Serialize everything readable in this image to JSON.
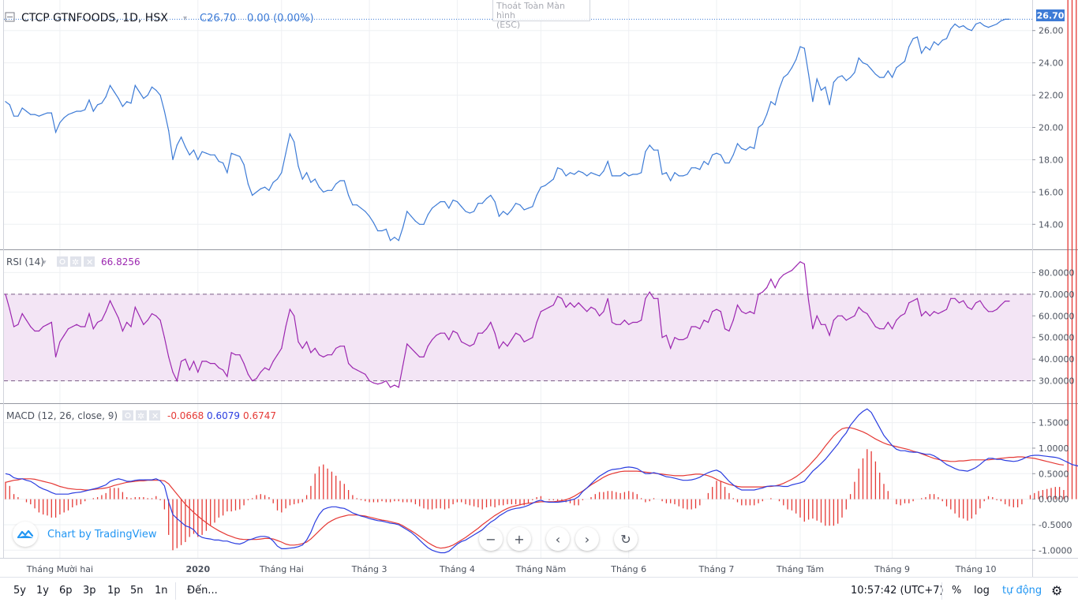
{
  "header": {
    "symbol_line": "CTCP GTNFOODS, 1D, HSX",
    "close": "C26.70",
    "change": "0.00 (0.00%)",
    "last_price_label": "26.70"
  },
  "fullscreen_exit": {
    "label": "Thoát Toàn Màn hình",
    "hint": "(ESC)"
  },
  "rsi": {
    "title": "RSI (14)",
    "value": "66.8256"
  },
  "macd": {
    "title": "MACD (12, 26, close, 9)",
    "hist": "-0.0668",
    "macd_value": "0.6079",
    "signal_value": "0.6747"
  },
  "branding": {
    "label": "Chart by TradingView"
  },
  "colors": {
    "price": "#3d7bd6",
    "rsi": "#9c27b0",
    "rsi_band": "#f3e5f5",
    "macd": "#2a3de0",
    "signal": "#e53935",
    "hist": "#e53935",
    "accent": "#2196f3"
  },
  "bottom_bar": {
    "ranges": [
      "5y",
      "1y",
      "6p",
      "3p",
      "1p",
      "5n",
      "1n"
    ],
    "goto": "Đến...",
    "time": "10:57:42 (UTC+7)",
    "percent": "%",
    "log": "log",
    "auto": "tự động"
  },
  "chart_data": [
    {
      "type": "line",
      "name": "price",
      "title": "CTCP GTNFOODS, 1D, HSX",
      "ylim": [
        12.5,
        27.5
      ],
      "yticks": [
        "14.00",
        "16.00",
        "18.00",
        "20.00",
        "22.00",
        "24.00",
        "26.00"
      ],
      "x_labels": [
        "Tháng Mười hai",
        "2020",
        "Tháng Hai",
        "Tháng 3",
        "Tháng 4",
        "Tháng Năm",
        "Tháng 6",
        "Tháng 7",
        "Tháng Tám",
        "Tháng 9",
        "Tháng 10"
      ],
      "x_label_index": [
        13,
        46,
        66,
        87,
        108,
        128,
        149,
        170,
        190,
        212,
        232
      ],
      "values": [
        21.6,
        21.4,
        20.7,
        20.7,
        21.2,
        21.0,
        20.8,
        20.8,
        20.7,
        20.8,
        20.9,
        20.9,
        19.7,
        20.3,
        20.6,
        20.8,
        20.9,
        21.0,
        21.0,
        21.1,
        21.7,
        21.0,
        21.4,
        21.5,
        21.9,
        22.6,
        22.2,
        21.8,
        21.3,
        21.6,
        21.5,
        22.6,
        22.2,
        21.8,
        22.0,
        22.5,
        22.3,
        22.0,
        21.0,
        19.8,
        18.0,
        18.9,
        19.4,
        18.8,
        18.3,
        18.6,
        18.0,
        18.5,
        18.4,
        18.3,
        18.3,
        17.9,
        17.8,
        17.2,
        18.4,
        18.3,
        18.2,
        17.7,
        16.5,
        15.8,
        16.0,
        16.2,
        16.3,
        16.1,
        16.6,
        16.8,
        17.2,
        18.4,
        19.6,
        19.1,
        17.6,
        16.8,
        17.2,
        16.6,
        16.8,
        16.3,
        16.0,
        16.1,
        16.1,
        16.5,
        16.7,
        16.7,
        15.8,
        15.2,
        15.2,
        15.0,
        14.8,
        14.5,
        14.1,
        13.6,
        13.6,
        13.7,
        13.0,
        13.2,
        13.0,
        13.8,
        14.8,
        14.5,
        14.2,
        14.0,
        14.0,
        14.6,
        15.0,
        15.2,
        15.4,
        15.4,
        15.0,
        15.5,
        15.4,
        15.1,
        14.8,
        14.7,
        14.8,
        15.3,
        15.3,
        15.6,
        15.8,
        15.4,
        14.5,
        14.8,
        14.6,
        14.9,
        15.3,
        15.2,
        14.9,
        15.0,
        15.1,
        15.8,
        16.3,
        16.4,
        16.6,
        16.8,
        17.5,
        17.4,
        17.0,
        17.2,
        17.1,
        17.3,
        17.2,
        17.0,
        17.2,
        17.1,
        17.0,
        17.3,
        17.9,
        17.0,
        17.0,
        17.0,
        17.2,
        17.0,
        17.1,
        17.1,
        17.2,
        18.5,
        18.9,
        18.6,
        18.6,
        17.1,
        17.2,
        16.7,
        17.2,
        17.0,
        17.0,
        17.1,
        17.5,
        17.5,
        17.4,
        17.9,
        17.7,
        18.3,
        18.4,
        18.3,
        17.8,
        17.8,
        18.3,
        19.0,
        18.7,
        18.6,
        18.8,
        18.7,
        20.0,
        20.2,
        20.8,
        21.6,
        21.4,
        22.4,
        23.1,
        23.3,
        23.7,
        24.2,
        25.0,
        24.9,
        23.3,
        21.6,
        23.0,
        22.3,
        22.5,
        21.4,
        22.8,
        23.1,
        23.2,
        22.9,
        23.1,
        23.4,
        24.3,
        24.0,
        23.9,
        23.6,
        23.3,
        23.1,
        23.1,
        23.5,
        23.1,
        23.7,
        23.9,
        24.1,
        25.0,
        25.5,
        25.6,
        24.6,
        25.0,
        24.8,
        25.3,
        25.1,
        25.4,
        25.5,
        26.1,
        26.4,
        26.2,
        26.3,
        26.1,
        26.0,
        26.4,
        26.5,
        26.3,
        26.2,
        26.3,
        26.4,
        26.6,
        26.7,
        26.7
      ]
    },
    {
      "type": "line",
      "name": "rsi",
      "title": "RSI (14)",
      "ylim": [
        20,
        90
      ],
      "yticks": [
        "30.0000",
        "40.0000",
        "50.0000",
        "60.0000",
        "70.0000",
        "80.0000"
      ],
      "bands": [
        30,
        70
      ],
      "values": [
        70.0,
        63.0,
        55.0,
        56.0,
        61.0,
        58.0,
        55.0,
        53.0,
        53.0,
        55.0,
        56.0,
        57.0,
        41.0,
        48.0,
        51.0,
        54.0,
        55.0,
        56.0,
        55.0,
        55.0,
        61.0,
        54.0,
        57.0,
        58.0,
        62.0,
        67.0,
        63.0,
        59.0,
        53.0,
        57.0,
        55.0,
        64.0,
        60.0,
        56.0,
        58.0,
        61.0,
        60.0,
        58.0,
        50.0,
        41.0,
        34.0,
        30.0,
        39.0,
        40.0,
        35.0,
        39.0,
        34.0,
        39.0,
        39.0,
        38.0,
        38.0,
        36.0,
        35.0,
        32.0,
        43.0,
        42.0,
        42.0,
        38.0,
        33.0,
        30.0,
        31.0,
        34.0,
        36.0,
        35.0,
        39.0,
        42.0,
        45.0,
        55.0,
        63.0,
        60.0,
        48.0,
        45.0,
        48.0,
        43.0,
        45.0,
        42.0,
        41.0,
        42.0,
        42.0,
        45.0,
        46.0,
        46.0,
        38.0,
        36.0,
        35.0,
        34.0,
        33.0,
        30.0,
        29.0,
        28.5,
        29.0,
        30.0,
        27.0,
        28.0,
        27.0,
        37.0,
        47.0,
        45.0,
        43.0,
        41.0,
        41.0,
        46.0,
        49.0,
        51.0,
        52.0,
        52.0,
        49.0,
        53.0,
        52.0,
        48.0,
        47.0,
        46.0,
        47.0,
        52.0,
        52.0,
        54.0,
        57.0,
        52.0,
        45.0,
        48.0,
        46.0,
        49.0,
        52.0,
        51.0,
        48.0,
        49.0,
        50.0,
        57.0,
        62.0,
        63.0,
        64.0,
        65.0,
        69.0,
        68.0,
        64.0,
        66.0,
        64.0,
        66.0,
        64.0,
        62.0,
        64.0,
        63.0,
        60.0,
        62.0,
        68.0,
        57.0,
        56.0,
        56.0,
        58.0,
        56.0,
        57.0,
        57.0,
        58.0,
        68.0,
        71.0,
        68.0,
        68.0,
        50.0,
        51.0,
        45.0,
        50.0,
        49.0,
        49.0,
        50.0,
        55.0,
        55.0,
        54.0,
        58.0,
        57.0,
        62.0,
        63.0,
        62.0,
        54.0,
        53.0,
        58.0,
        65.0,
        62.0,
        61.0,
        62.0,
        61.0,
        70.0,
        71.0,
        73.0,
        77.0,
        73.0,
        77.0,
        79.0,
        80.0,
        81.0,
        83.0,
        85.0,
        84.0,
        67.0,
        54.0,
        60.0,
        56.0,
        56.0,
        51.0,
        58.0,
        60.0,
        60.0,
        58.0,
        59.0,
        60.0,
        64.0,
        62.0,
        61.0,
        58.0,
        55.0,
        54.0,
        54.0,
        57.0,
        54.0,
        58.0,
        60.0,
        61.0,
        66.0,
        67.0,
        68.0,
        60.0,
        62.0,
        60.0,
        62.0,
        61.0,
        62.0,
        63.0,
        68.0,
        68.0,
        66.0,
        67.0,
        64.0,
        63.0,
        66.0,
        67.0,
        64.0,
        62.0,
        62.0,
        63.0,
        65.0,
        66.8,
        66.8
      ]
    },
    {
      "type": "line",
      "name": "macd",
      "title": "MACD (12, 26, close, 9)",
      "ylim": [
        -1.15,
        1.85
      ],
      "yticks": [
        "-1.0000",
        "-0.5000",
        "0.0000",
        "0.5000",
        "1.0000",
        "1.5000"
      ],
      "series": [
        {
          "name": "MACD",
          "values": [
            0.5,
            0.48,
            0.42,
            0.4,
            0.4,
            0.37,
            0.35,
            0.3,
            0.24,
            0.2,
            0.17,
            0.13,
            0.1,
            0.1,
            0.1,
            0.1,
            0.12,
            0.13,
            0.14,
            0.16,
            0.18,
            0.2,
            0.22,
            0.25,
            0.28,
            0.35,
            0.38,
            0.4,
            0.38,
            0.35,
            0.35,
            0.37,
            0.38,
            0.38,
            0.38,
            0.38,
            0.4,
            0.36,
            0.26,
            -0.05,
            -0.3,
            -0.38,
            -0.45,
            -0.52,
            -0.55,
            -0.6,
            -0.7,
            -0.75,
            -0.77,
            -0.78,
            -0.8,
            -0.8,
            -0.82,
            -0.82,
            -0.85,
            -0.87,
            -0.88,
            -0.85,
            -0.8,
            -0.78,
            -0.75,
            -0.73,
            -0.73,
            -0.75,
            -0.82,
            -0.92,
            -0.97,
            -0.97,
            -0.96,
            -0.95,
            -0.93,
            -0.9,
            -0.8,
            -0.65,
            -0.45,
            -0.3,
            -0.2,
            -0.17,
            -0.15,
            -0.15,
            -0.17,
            -0.18,
            -0.22,
            -0.27,
            -0.3,
            -0.33,
            -0.35,
            -0.38,
            -0.4,
            -0.42,
            -0.43,
            -0.45,
            -0.47,
            -0.48,
            -0.5,
            -0.55,
            -0.6,
            -0.65,
            -0.72,
            -0.8,
            -0.88,
            -0.95,
            -1.0,
            -1.03,
            -1.05,
            -1.05,
            -1.02,
            -0.95,
            -0.88,
            -0.83,
            -0.8,
            -0.75,
            -0.7,
            -0.65,
            -0.6,
            -0.52,
            -0.45,
            -0.4,
            -0.33,
            -0.28,
            -0.23,
            -0.2,
            -0.18,
            -0.17,
            -0.15,
            -0.12,
            -0.08,
            -0.04,
            -0.02,
            -0.05,
            -0.06,
            -0.06,
            -0.06,
            -0.05,
            -0.04,
            -0.02,
            0.0,
            0.05,
            0.15,
            0.22,
            0.3,
            0.38,
            0.45,
            0.5,
            0.55,
            0.58,
            0.59,
            0.6,
            0.62,
            0.63,
            0.62,
            0.6,
            0.55,
            0.5,
            0.5,
            0.52,
            0.5,
            0.47,
            0.44,
            0.43,
            0.41,
            0.39,
            0.37,
            0.37,
            0.38,
            0.4,
            0.43,
            0.48,
            0.52,
            0.55,
            0.57,
            0.53,
            0.44,
            0.35,
            0.28,
            0.22,
            0.18,
            0.18,
            0.18,
            0.18,
            0.2,
            0.22,
            0.25,
            0.26,
            0.26,
            0.26,
            0.25,
            0.25,
            0.28,
            0.3,
            0.32,
            0.35,
            0.45,
            0.55,
            0.62,
            0.7,
            0.78,
            0.88,
            0.98,
            1.08,
            1.2,
            1.3,
            1.45,
            1.55,
            1.65,
            1.72,
            1.77,
            1.7,
            1.55,
            1.4,
            1.25,
            1.15,
            1.05,
            0.98,
            0.95,
            0.95,
            0.93,
            0.92,
            0.92,
            0.9,
            0.88,
            0.88,
            0.85,
            0.8,
            0.74,
            0.68,
            0.64,
            0.6,
            0.57,
            0.56,
            0.55,
            0.58,
            0.62,
            0.68,
            0.75,
            0.8,
            0.8,
            0.78,
            0.78,
            0.76,
            0.75,
            0.74,
            0.75,
            0.78,
            0.82,
            0.85,
            0.86,
            0.86,
            0.85,
            0.84,
            0.83,
            0.82,
            0.8,
            0.76,
            0.72,
            0.68,
            0.66,
            0.64,
            0.62,
            0.61,
            0.61,
            0.6,
            0.6
          ]
        },
        {
          "name": "Signal",
          "values": [
            0.33,
            0.35,
            0.37,
            0.38,
            0.4,
            0.4,
            0.4,
            0.39,
            0.37,
            0.35,
            0.33,
            0.31,
            0.28,
            0.25,
            0.23,
            0.21,
            0.2,
            0.19,
            0.19,
            0.18,
            0.18,
            0.19,
            0.2,
            0.21,
            0.22,
            0.24,
            0.27,
            0.29,
            0.31,
            0.33,
            0.34,
            0.35,
            0.36,
            0.36,
            0.37,
            0.37,
            0.37,
            0.37,
            0.36,
            0.3,
            0.2,
            0.1,
            0.0,
            -0.1,
            -0.18,
            -0.26,
            -0.33,
            -0.4,
            -0.46,
            -0.52,
            -0.57,
            -0.62,
            -0.66,
            -0.7,
            -0.73,
            -0.76,
            -0.78,
            -0.79,
            -0.79,
            -0.79,
            -0.79,
            -0.78,
            -0.77,
            -0.77,
            -0.78,
            -0.81,
            -0.84,
            -0.88,
            -0.9,
            -0.9,
            -0.89,
            -0.87,
            -0.84,
            -0.78,
            -0.7,
            -0.62,
            -0.54,
            -0.47,
            -0.42,
            -0.38,
            -0.35,
            -0.33,
            -0.31,
            -0.31,
            -0.31,
            -0.32,
            -0.33,
            -0.35,
            -0.37,
            -0.39,
            -0.41,
            -0.42,
            -0.44,
            -0.46,
            -0.48,
            -0.52,
            -0.57,
            -0.62,
            -0.67,
            -0.73,
            -0.79,
            -0.85,
            -0.9,
            -0.94,
            -0.96,
            -0.95,
            -0.93,
            -0.9,
            -0.85,
            -0.8,
            -0.75,
            -0.69,
            -0.63,
            -0.57,
            -0.5,
            -0.44,
            -0.38,
            -0.32,
            -0.27,
            -0.22,
            -0.18,
            -0.15,
            -0.13,
            -0.11,
            -0.09,
            -0.08,
            -0.07,
            -0.06,
            -0.05,
            -0.05,
            -0.05,
            -0.05,
            -0.04,
            -0.03,
            -0.01,
            0.02,
            0.06,
            0.11,
            0.16,
            0.22,
            0.28,
            0.33,
            0.38,
            0.43,
            0.47,
            0.5,
            0.52,
            0.54,
            0.55,
            0.55,
            0.55,
            0.55,
            0.54,
            0.53,
            0.52,
            0.51,
            0.5,
            0.49,
            0.48,
            0.47,
            0.46,
            0.46,
            0.46,
            0.47,
            0.48,
            0.49,
            0.49,
            0.48,
            0.46,
            0.43,
            0.39,
            0.35,
            0.32,
            0.29,
            0.27,
            0.25,
            0.24,
            0.24,
            0.24,
            0.24,
            0.24,
            0.24,
            0.25,
            0.25,
            0.26,
            0.28,
            0.31,
            0.35,
            0.39,
            0.44,
            0.5,
            0.57,
            0.65,
            0.74,
            0.83,
            0.93,
            1.04,
            1.14,
            1.24,
            1.32,
            1.38,
            1.4,
            1.4,
            1.38,
            1.35,
            1.32,
            1.28,
            1.23,
            1.18,
            1.14,
            1.1,
            1.07,
            1.05,
            1.03,
            1.01,
            0.99,
            0.97,
            0.94,
            0.92,
            0.89,
            0.86,
            0.83,
            0.8,
            0.78,
            0.76,
            0.75,
            0.74,
            0.74,
            0.75,
            0.75,
            0.76,
            0.77,
            0.77,
            0.77,
            0.77,
            0.77,
            0.78,
            0.79,
            0.8,
            0.81,
            0.82,
            0.82,
            0.83,
            0.83,
            0.82,
            0.81,
            0.8,
            0.78,
            0.76,
            0.74,
            0.72,
            0.7,
            0.68,
            0.67
          ]
        }
      ]
    }
  ]
}
